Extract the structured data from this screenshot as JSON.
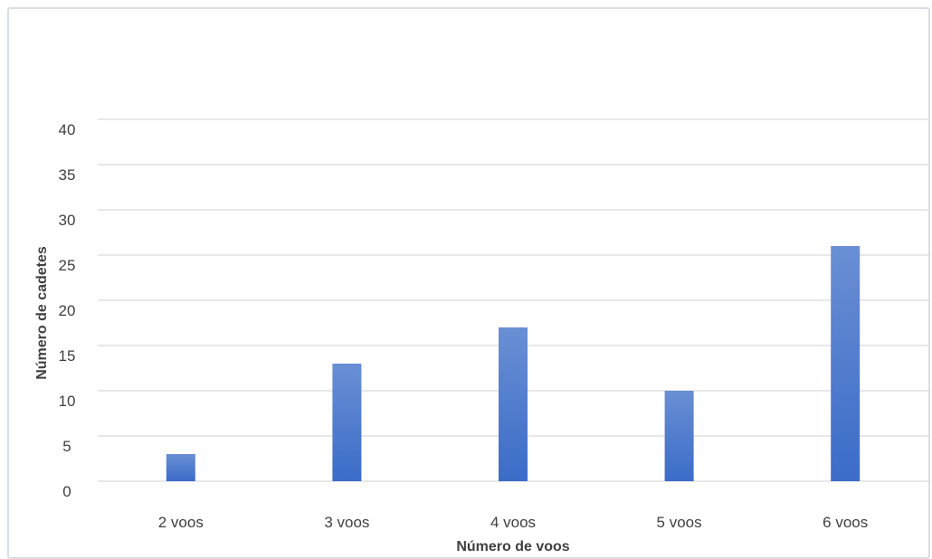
{
  "chart_data": {
    "type": "bar",
    "categories": [
      "2 voos",
      "3 voos",
      "4 voos",
      "5 voos",
      "6 voos"
    ],
    "values": [
      3,
      13,
      17,
      10,
      26
    ],
    "xlabel": "Número de voos",
    "ylabel": "Número de cadetes",
    "ylim": [
      0,
      40
    ],
    "yticks": [
      0,
      5,
      10,
      15,
      20,
      25,
      30,
      35,
      40
    ],
    "grid": true,
    "legend": "none",
    "colors": {
      "bar_top": "#6a8fd4",
      "bar_bottom": "#3b6cc8",
      "grid": "#d9d9d9",
      "text": "#404040"
    }
  }
}
